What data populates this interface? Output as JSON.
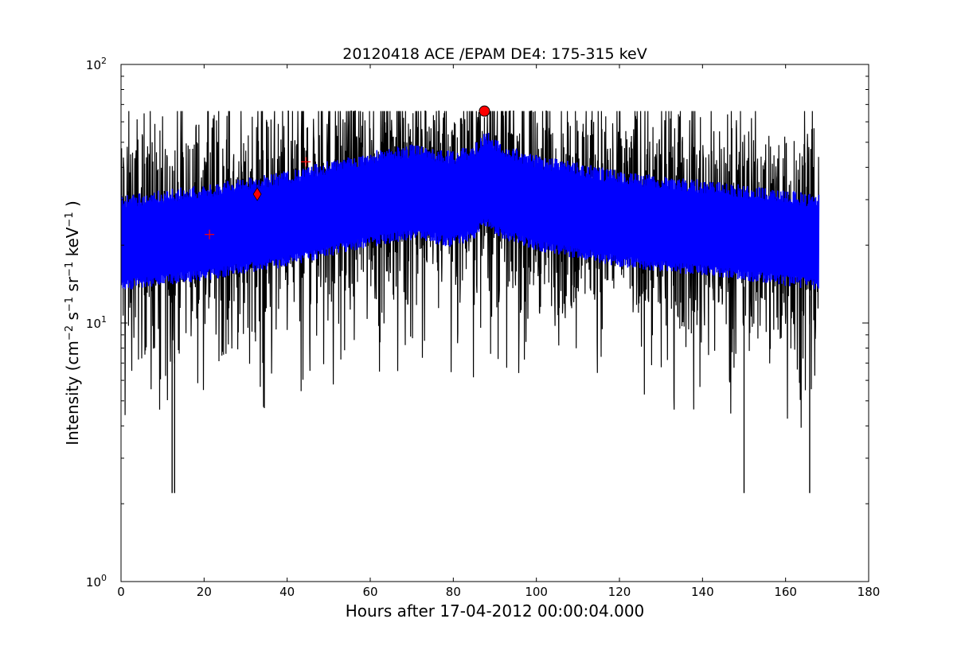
{
  "chart_data": {
    "type": "line",
    "title": "20120418 ACE /EPAM DE4: 175-315 keV",
    "xlabel": "Hours after 17-04-2012 00:00:04.000",
    "ylabel": {
      "prefix": "Intensity (cm",
      "parts": [
        {
          "sup": "−2",
          "text": " s"
        },
        {
          "sup": "−1",
          "text": " sr"
        },
        {
          "sup": "−1",
          "text": " keV"
        },
        {
          "sup": "−1",
          "text": " )"
        }
      ]
    },
    "xlim": [
      0,
      180
    ],
    "ylim": [
      1,
      100
    ],
    "yscale": "log",
    "grid": false,
    "x_ticks": [
      0,
      20,
      40,
      60,
      80,
      100,
      120,
      140,
      160,
      180
    ],
    "x_tick_labels": [
      "0",
      "20",
      "40",
      "60",
      "80",
      "100",
      "120",
      "140",
      "160",
      "180"
    ],
    "y_ticks": [
      1,
      10,
      100
    ],
    "y_tick_labels": [
      {
        "base": "10",
        "exp": "0"
      },
      {
        "base": "10",
        "exp": "1"
      },
      {
        "base": "10",
        "exp": "2"
      }
    ],
    "colors": {
      "raw": "#000000",
      "smoothed": "#0000ff",
      "markers": "#ff0000"
    },
    "series": [
      {
        "style": "black-noisy",
        "x_range": [
          0,
          168
        ],
        "center": [
          [
            0,
            21
          ],
          [
            20,
            23
          ],
          [
            40,
            26
          ],
          [
            60,
            31
          ],
          [
            70,
            33
          ],
          [
            80,
            31
          ],
          [
            85,
            33
          ],
          [
            88,
            37
          ],
          [
            92,
            33
          ],
          [
            100,
            30
          ],
          [
            120,
            26
          ],
          [
            140,
            24
          ],
          [
            160,
            22
          ],
          [
            168,
            21
          ]
        ],
        "typical_range": [
          9,
          47
        ],
        "max": 66,
        "min": 2.2
      },
      {
        "style": "blue-band",
        "x_range": [
          0,
          168
        ],
        "center": [
          [
            0,
            21
          ],
          [
            20,
            23
          ],
          [
            40,
            26
          ],
          [
            60,
            31
          ],
          [
            70,
            33
          ],
          [
            80,
            31
          ],
          [
            85,
            33
          ],
          [
            88,
            37
          ],
          [
            92,
            33
          ],
          [
            100,
            30
          ],
          [
            120,
            26
          ],
          [
            140,
            24
          ],
          [
            160,
            22
          ],
          [
            168,
            21
          ]
        ],
        "band_low_factor": 0.68,
        "band_high_factor": 1.42
      }
    ],
    "markers": [
      {
        "symbol": "plus",
        "x": 21.3,
        "y": 22
      },
      {
        "symbol": "diamond",
        "x": 32.8,
        "y": 31.5
      },
      {
        "symbol": "plus",
        "x": 44.5,
        "y": 42
      },
      {
        "symbol": "circle",
        "x": 87.5,
        "y": 66
      }
    ]
  }
}
